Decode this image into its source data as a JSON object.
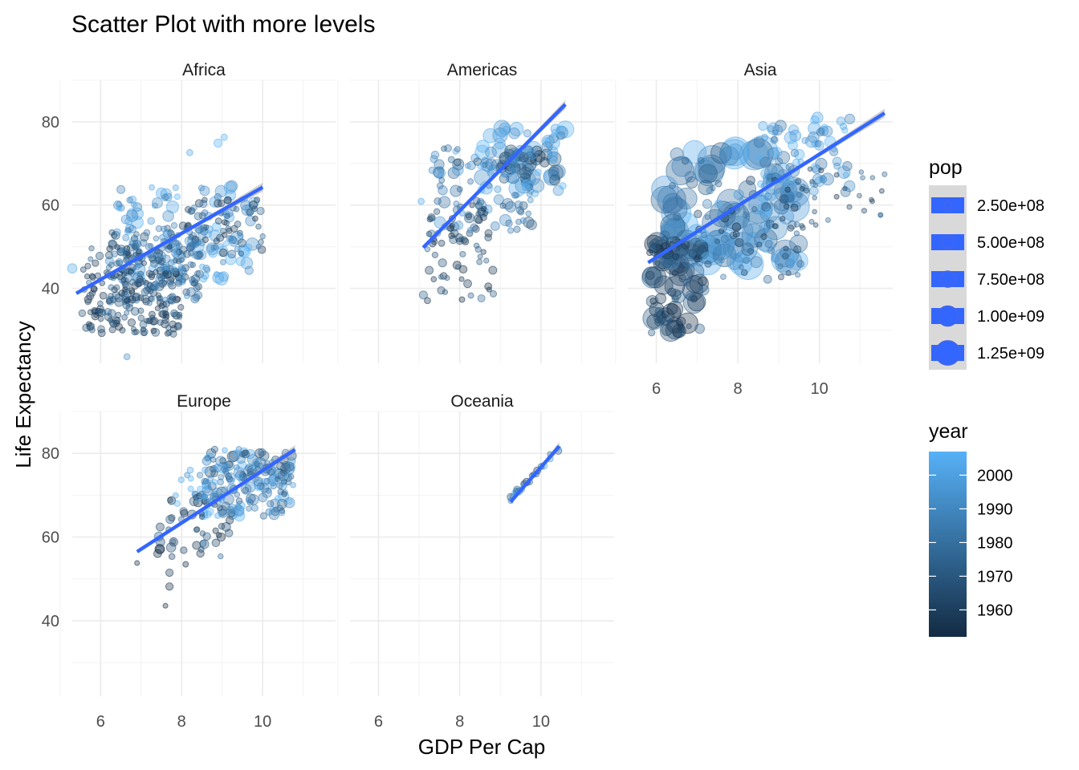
{
  "chart_data": {
    "type": "scatter",
    "title": "Scatter Plot with more levels",
    "xlabel": "GDP Per Cap",
    "ylabel": "Life Expectancy",
    "xlim": [
      5.3,
      11.8
    ],
    "ylim": [
      22,
      90
    ],
    "x_ticks": [
      6,
      8,
      10
    ],
    "y_ticks": [
      40,
      60,
      80
    ],
    "grid": true,
    "facets": [
      {
        "name": "Africa",
        "trend": {
          "x": [
            5.4,
            10.0
          ],
          "y": [
            38.8,
            64.3
          ]
        },
        "clusters": [
          {
            "x": [
              5.5,
              8.0
            ],
            "y": [
              29,
              50
            ],
            "n": 200,
            "year": [
              1952,
              1977
            ],
            "pop": [
              1000000.0,
              25000000.0
            ]
          },
          {
            "x": [
              6.2,
              8.5
            ],
            "y": [
              36,
              55
            ],
            "n": 160,
            "year": [
              1967,
              1992
            ],
            "pop": [
              2000000.0,
              40000000.0
            ]
          },
          {
            "x": [
              6.3,
              9.8
            ],
            "y": [
              42,
              65
            ],
            "n": 120,
            "year": [
              1987,
              2007
            ],
            "pop": [
              3000000.0,
              130000000.0
            ]
          },
          {
            "x": [
              8.0,
              10.0
            ],
            "y": [
              48,
              62
            ],
            "n": 60,
            "year": [
              1952,
              1987
            ],
            "pop": [
              2000000.0,
              30000000.0
            ]
          }
        ],
        "points": [
          {
            "x": 6.65,
            "y": 23.6,
            "year": 1992,
            "pop": 7000000.0
          },
          {
            "x": 9.05,
            "y": 76.3,
            "year": 2007,
            "pop": 10000000.0
          },
          {
            "x": 8.9,
            "y": 74.9,
            "year": 2007,
            "pop": 30000000.0
          },
          {
            "x": 8.2,
            "y": 72.6,
            "year": 2002,
            "pop": 8000000.0
          },
          {
            "x": 5.3,
            "y": 44.8,
            "year": 2002,
            "pop": 50000000.0
          },
          {
            "x": 10.0,
            "y": 52.5,
            "year": 1977,
            "pop": 2000000.0
          },
          {
            "x": 9.9,
            "y": 50.0,
            "year": 1982,
            "pop": 1000000.0
          }
        ]
      },
      {
        "name": "Americas",
        "trend": {
          "x": [
            7.1,
            10.6
          ],
          "y": [
            49.8,
            84.2
          ]
        },
        "clusters": [
          {
            "x": [
              7.1,
              8.9
            ],
            "y": [
              37,
              60
            ],
            "n": 70,
            "year": [
              1952,
              1977
            ],
            "pop": [
              1000000.0,
              30000000.0
            ]
          },
          {
            "x": [
              7.3,
              9.8
            ],
            "y": [
              53,
              74
            ],
            "n": 90,
            "year": [
              1967,
              1997
            ],
            "pop": [
              3000000.0,
              100000000.0
            ]
          },
          {
            "x": [
              8.5,
              10.6
            ],
            "y": [
              62,
              79
            ],
            "n": 60,
            "year": [
              1987,
              2007
            ],
            "pop": [
              10000000.0,
              300000000.0
            ]
          },
          {
            "x": [
              9.0,
              10.4
            ],
            "y": [
              66,
              73
            ],
            "n": 25,
            "year": [
              1952,
              1977
            ],
            "pop": [
              50000000.0,
              220000000.0
            ]
          }
        ],
        "points": [
          {
            "x": 10.6,
            "y": 78.2,
            "year": 2007,
            "pop": 300000000.0
          },
          {
            "x": 7.05,
            "y": 60.9,
            "year": 2002,
            "pop": 8000000.0
          },
          {
            "x": 7.9,
            "y": 72.9,
            "year": 2002,
            "pop": 5000000.0
          }
        ]
      },
      {
        "name": "Asia",
        "trend": {
          "x": [
            5.8,
            11.6
          ],
          "y": [
            46.2,
            82.1
          ]
        },
        "clusters": [
          {
            "x": [
              5.8,
              7.2
            ],
            "y": [
              29,
              52
            ],
            "n": 90,
            "year": [
              1952,
              1977
            ],
            "pop": [
              1000000.0,
              600000000.0
            ]
          },
          {
            "x": [
              6.2,
              9.5
            ],
            "y": [
              45,
              73
            ],
            "n": 110,
            "year": [
              1972,
              2007
            ],
            "pop": [
              5000000.0,
              1300000000.0
            ]
          },
          {
            "x": [
              8.5,
              10.8
            ],
            "y": [
              62,
              82
            ],
            "n": 80,
            "year": [
              1982,
              2007
            ],
            "pop": [
              3000000.0,
              130000000.0
            ]
          },
          {
            "x": [
              7.0,
              9.6
            ],
            "y": [
              42,
              66
            ],
            "n": 60,
            "year": [
              1952,
              1987
            ],
            "pop": [
              1000000.0,
              40000000.0
            ]
          },
          {
            "x": [
              9.5,
              11.6
            ],
            "y": [
              55,
              70
            ],
            "n": 25,
            "year": [
              1952,
              1982
            ],
            "pop": [
              100000.0,
              2000000.0
            ]
          }
        ],
        "points": [
          {
            "x": 6.6,
            "y": 43.4,
            "year": 1962,
            "pop": 660000000.0
          },
          {
            "x": 6.4,
            "y": 54.9,
            "year": 1967,
            "pop": 750000000.0
          },
          {
            "x": 6.2,
            "y": 61.3,
            "year": 1977,
            "pop": 950000000.0
          },
          {
            "x": 7.3,
            "y": 68.0,
            "year": 1987,
            "pop": 1100000000.0
          },
          {
            "x": 8.4,
            "y": 72.0,
            "year": 1997,
            "pop": 1200000000.0
          },
          {
            "x": 8.6,
            "y": 73.0,
            "year": 2002,
            "pop": 1280000000.0
          },
          {
            "x": 6.45,
            "y": 40.5,
            "year": 1962,
            "pop": 450000000.0
          },
          {
            "x": 6.6,
            "y": 30.2,
            "year": 1962,
            "pop": 8000000.0
          },
          {
            "x": 11.3,
            "y": 60.9,
            "year": 1962,
            "pop": 300000.0
          },
          {
            "x": 11.5,
            "y": 57.6,
            "year": 1967,
            "pop": 500000.0
          },
          {
            "x": 11.6,
            "y": 67.4,
            "year": 1977,
            "pop": 1000000.0
          }
        ]
      },
      {
        "name": "Europe",
        "trend": {
          "x": [
            6.9,
            10.8
          ],
          "y": [
            56.5,
            80.9
          ]
        },
        "clusters": [
          {
            "x": [
              8.5,
              10.8
            ],
            "y": [
              65,
              81
            ],
            "n": 180,
            "year": [
              1967,
              2007
            ],
            "pop": [
              2000000.0,
              80000000.0
            ]
          },
          {
            "x": [
              7.4,
              9.3
            ],
            "y": [
              55,
              70
            ],
            "n": 50,
            "year": [
              1952,
              1977
            ],
            "pop": [
              2000000.0,
              50000000.0
            ]
          },
          {
            "x": [
              7.8,
              9.0
            ],
            "y": [
              68,
              76
            ],
            "n": 25,
            "year": [
              1982,
              2007
            ],
            "pop": [
              3000000.0,
              10000000.0
            ]
          }
        ],
        "points": [
          {
            "x": 7.6,
            "y": 43.6,
            "year": 1952,
            "pop": 1000000.0
          },
          {
            "x": 7.7,
            "y": 48.2,
            "year": 1952,
            "pop": 20000000.0
          },
          {
            "x": 6.9,
            "y": 53.8,
            "year": 1952,
            "pop": 1000000.0
          },
          {
            "x": 7.7,
            "y": 51.5,
            "year": 1957,
            "pop": 20000000.0
          },
          {
            "x": 8.1,
            "y": 53.5,
            "year": 1952,
            "pop": 4000000.0
          }
        ]
      },
      {
        "name": "Oceania",
        "trend": {
          "x": [
            9.25,
            10.45
          ],
          "y": [
            68.4,
            81.7
          ]
        },
        "clusters": [
          {
            "x": [
              9.25,
              10.45
            ],
            "y": [
              69,
              81.5
            ],
            "n": 24,
            "year": [
              1952,
              2007
            ],
            "pop": [
              2000000.0,
              20000000.0
            ],
            "linear": true
          }
        ],
        "points": []
      }
    ],
    "legend_pop": {
      "title": "pop",
      "labels": [
        "2.50e+08",
        "5.00e+08",
        "7.50e+08",
        "1.00e+09",
        "1.25e+09"
      ]
    },
    "legend_year": {
      "title": "year",
      "labels": [
        "2000",
        "1990",
        "1980",
        "1970",
        "1960"
      ],
      "range": [
        1952,
        2007
      ]
    },
    "colors": {
      "year_low": "#132b43",
      "year_high": "#56b1f7",
      "trend": "#3366ff",
      "band": "#999999"
    }
  }
}
